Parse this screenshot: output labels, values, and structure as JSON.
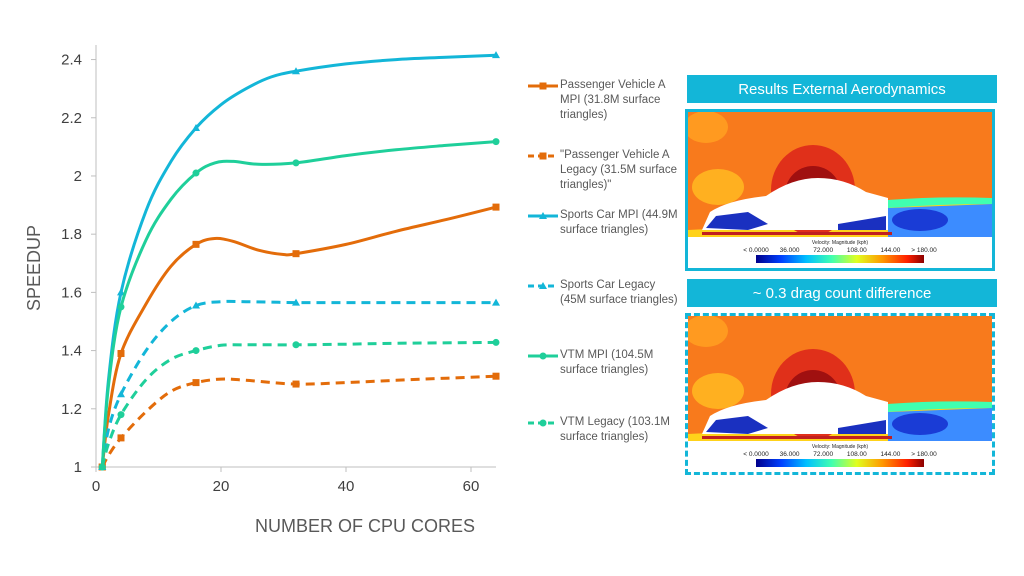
{
  "chart_data": {
    "type": "line",
    "xlabel": "NUMBER OF CPU CORES",
    "ylabel": "SPEEDUP",
    "xlim": [
      0,
      64
    ],
    "ylim": [
      1,
      2.45
    ],
    "xticks": [
      0,
      20,
      40,
      60
    ],
    "yticks": [
      1,
      1.2,
      1.4,
      1.6,
      1.8,
      2,
      2.2,
      2.4
    ],
    "ytick_labels": [
      "1",
      "1.2",
      "1.4",
      "1.6",
      "1.8",
      "2",
      "2.2",
      "2.4"
    ],
    "grid": false,
    "legend_position": "right",
    "series": [
      {
        "name": "Passenger Vehicle A MPI (31.8M surface triangles)",
        "color": "#e36c0a",
        "dash": "solid",
        "marker": "square",
        "x": [
          1,
          4,
          16,
          32,
          64
        ],
        "y": [
          1.0,
          1.39,
          1.765,
          1.733,
          1.893
        ],
        "curve_x": [
          1,
          2,
          4,
          8,
          12,
          16,
          19,
          22,
          26,
          30,
          32,
          40,
          48,
          56,
          64
        ],
        "curve_y": [
          1.0,
          1.18,
          1.39,
          1.56,
          1.69,
          1.765,
          1.785,
          1.775,
          1.745,
          1.73,
          1.733,
          1.765,
          1.81,
          1.85,
          1.893
        ]
      },
      {
        "name": "\"Passenger Vehicle A Legacy (31.5M surface triangles)\"",
        "color": "#e36c0a",
        "dash": "dashed",
        "marker": "square",
        "x": [
          1,
          4,
          16,
          32,
          64
        ],
        "y": [
          1.0,
          1.1,
          1.29,
          1.285,
          1.312
        ],
        "curve_x": [
          1,
          2,
          4,
          8,
          12,
          16,
          20,
          24,
          32,
          40,
          48,
          56,
          64
        ],
        "curve_y": [
          1.0,
          1.04,
          1.1,
          1.19,
          1.26,
          1.29,
          1.302,
          1.298,
          1.285,
          1.29,
          1.298,
          1.305,
          1.312
        ]
      },
      {
        "name": "Sports Car MPI (44.9M surface triangles)",
        "color": "#13b6d8",
        "dash": "solid",
        "marker": "triangle",
        "x": [
          1,
          4,
          16,
          32,
          64
        ],
        "y": [
          1.0,
          1.6,
          2.165,
          2.36,
          2.415
        ],
        "curve_x": [
          1,
          2,
          4,
          8,
          12,
          16,
          20,
          24,
          28,
          32,
          40,
          48,
          56,
          64
        ],
        "curve_y": [
          1.0,
          1.3,
          1.6,
          1.88,
          2.05,
          2.165,
          2.245,
          2.3,
          2.34,
          2.36,
          2.385,
          2.4,
          2.408,
          2.415
        ]
      },
      {
        "name": "Sports Car Legacy (45M surface triangles)",
        "color": "#13b6d8",
        "dash": "dashed",
        "marker": "triangle",
        "x": [
          1,
          4,
          16,
          32,
          64
        ],
        "y": [
          1.0,
          1.25,
          1.555,
          1.565,
          1.565
        ],
        "curve_x": [
          1,
          2,
          4,
          8,
          12,
          16,
          20,
          24,
          32,
          40,
          48,
          64
        ],
        "curve_y": [
          1.0,
          1.13,
          1.25,
          1.4,
          1.5,
          1.555,
          1.568,
          1.568,
          1.565,
          1.565,
          1.565,
          1.565
        ]
      },
      {
        "name": "VTM MPI (104.5M surface triangles)",
        "color": "#1fcf9a",
        "dash": "solid",
        "marker": "circle",
        "x": [
          1,
          4,
          16,
          32,
          64
        ],
        "y": [
          1.0,
          1.55,
          2.01,
          2.045,
          2.118
        ],
        "curve_x": [
          1,
          2,
          4,
          8,
          12,
          16,
          19,
          22,
          26,
          32,
          40,
          48,
          56,
          64
        ],
        "curve_y": [
          1.0,
          1.28,
          1.55,
          1.78,
          1.92,
          2.01,
          2.045,
          2.05,
          2.04,
          2.045,
          2.07,
          2.09,
          2.105,
          2.118
        ]
      },
      {
        "name": "VTM Legacy (103.1M surface triangles)",
        "color": "#1fcf9a",
        "dash": "dashed",
        "marker": "circle",
        "x": [
          1,
          4,
          16,
          32,
          64
        ],
        "y": [
          1.0,
          1.18,
          1.4,
          1.42,
          1.428
        ],
        "curve_x": [
          1,
          2,
          4,
          8,
          12,
          16,
          20,
          24,
          32,
          40,
          48,
          64
        ],
        "curve_y": [
          1.0,
          1.08,
          1.18,
          1.3,
          1.37,
          1.4,
          1.418,
          1.42,
          1.42,
          1.422,
          1.425,
          1.428
        ]
      }
    ]
  },
  "panels": [
    {
      "header": "Results External Aerodynamics",
      "border": "solid"
    },
    {
      "header": "~ 0.3 drag count difference",
      "border": "dashed"
    }
  ],
  "colorbar": {
    "title": "Velocity: Magnitude (kph)",
    "labels": [
      "< 0.0000",
      "36.000",
      "72.000",
      "108.00",
      "144.00",
      "> 180.00"
    ]
  }
}
